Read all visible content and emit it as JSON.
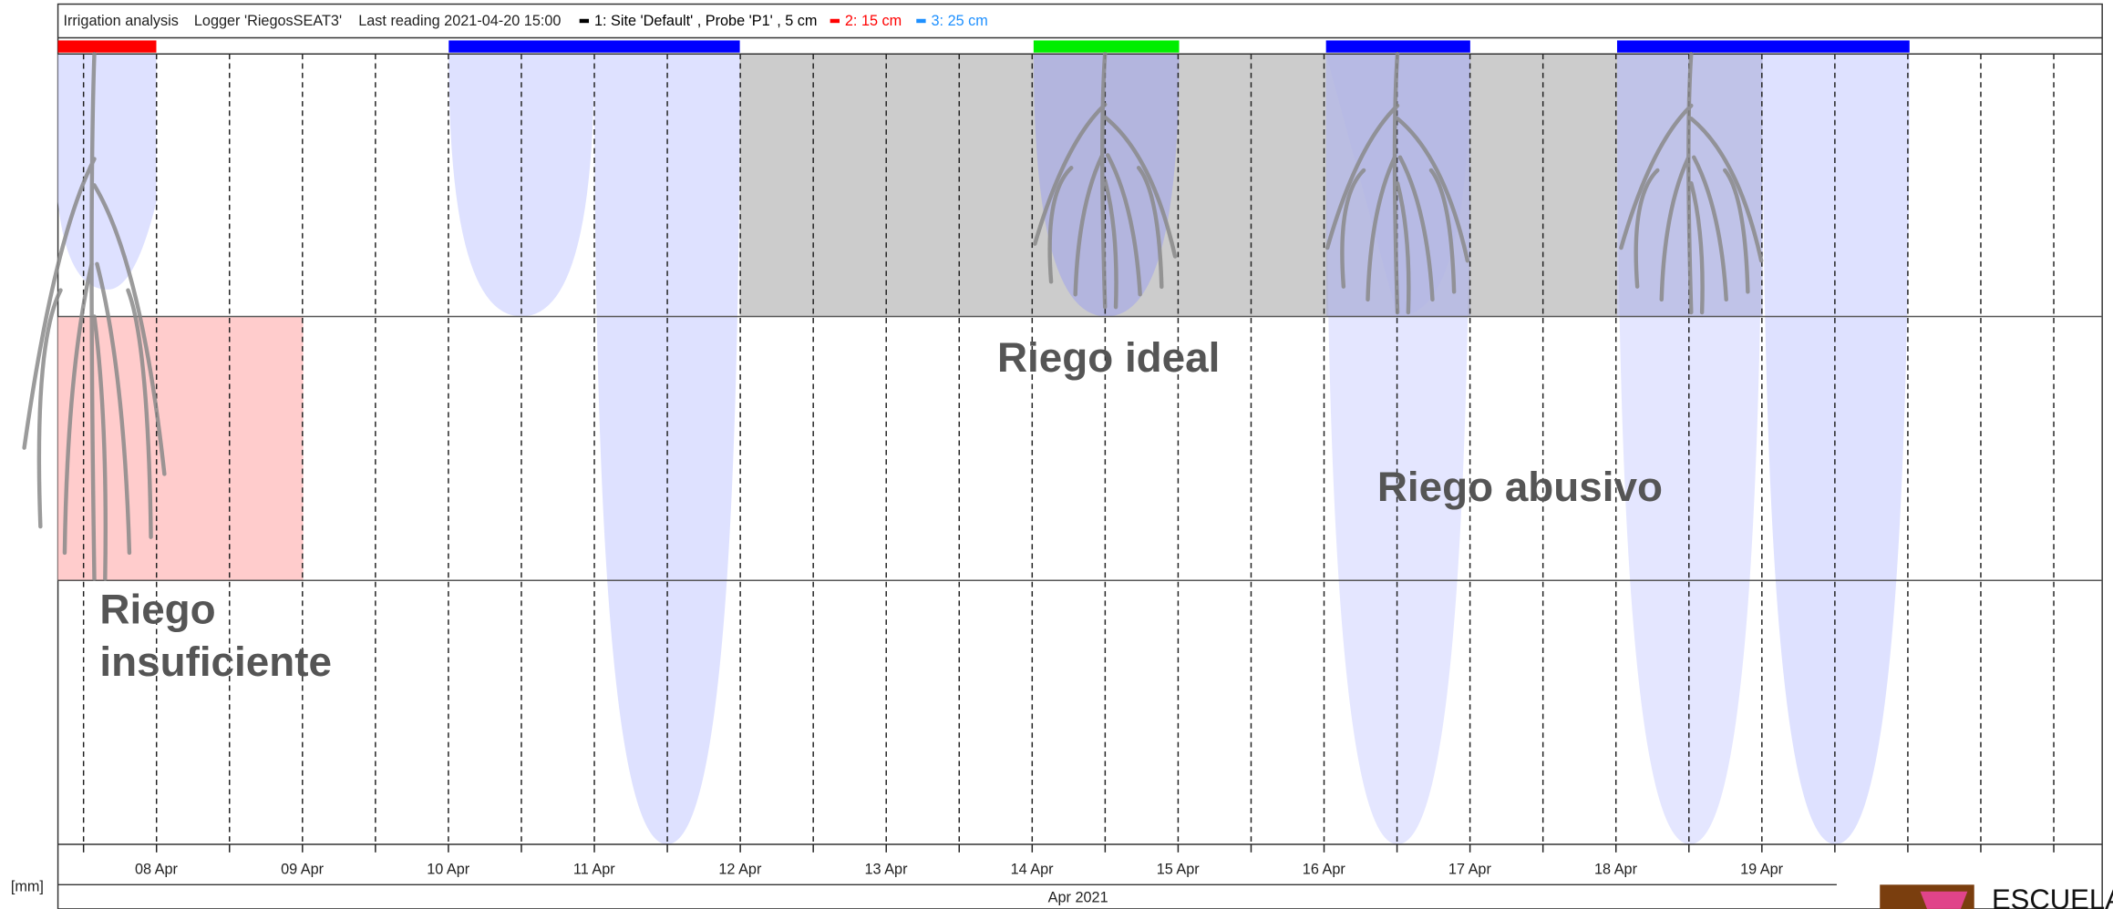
{
  "header": {
    "title": "Irrigation analysis",
    "logger": "Logger 'RiegosSEAT3'",
    "last_reading": "Last reading 2021-04-20 15:00",
    "legend": [
      {
        "label": "1: Site 'Default' , Probe 'P1' , 5 cm",
        "color": "#000000"
      },
      {
        "label": "2: 15 cm",
        "color": "#ff0000"
      },
      {
        "label": "3: 25 cm",
        "color": "#1e90ff"
      }
    ]
  },
  "x_axis": {
    "ticks": [
      "08 Apr",
      "09 Apr",
      "10 Apr",
      "11 Apr",
      "12 Apr",
      "13 Apr",
      "14 Apr",
      "15 Apr",
      "16 Apr",
      "17 Apr",
      "18 Apr",
      "19 Apr"
    ],
    "month": "Apr 2021",
    "unit": "[mm]"
  },
  "annotations": {
    "ideal": "Riego ideal",
    "abusivo": "Riego abusivo",
    "insuficiente": [
      "Riego",
      "insuficiente"
    ]
  },
  "logo": "ESCUELA"
}
